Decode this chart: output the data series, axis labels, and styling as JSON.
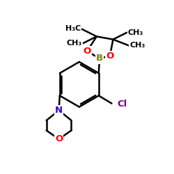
{
  "bg_color": "#ffffff",
  "atom_colors": {
    "B": "#808000",
    "O": "#ff0000",
    "N": "#3300cc",
    "Cl": "#800080"
  },
  "bond_color": "#000000",
  "bond_width": 1.8,
  "figsize": [
    2.5,
    2.5
  ],
  "dpi": 100,
  "xlim": [
    0,
    10
  ],
  "ylim": [
    0,
    10
  ]
}
